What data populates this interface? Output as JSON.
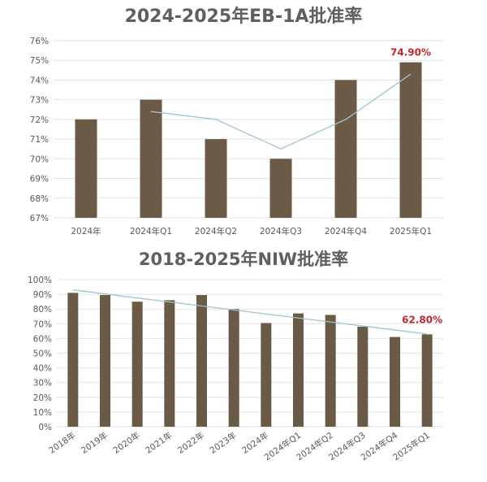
{
  "colors": {
    "bar": "#6b5b46",
    "trend": "#9ec3d3",
    "grid": "#e2e2e2",
    "highlight": "#c0282d"
  },
  "chart_data": [
    {
      "type": "bar",
      "title": "2024-2025年EB-1A批准率",
      "categories": [
        "2024年",
        "2024年Q1",
        "2024年Q2",
        "2024年Q3",
        "2024年Q4",
        "2025年Q1"
      ],
      "values": [
        72.0,
        73.0,
        71.0,
        70.0,
        74.0,
        74.9
      ],
      "trend_line": {
        "categories": [
          "2024年Q1",
          "2024年Q2",
          "2024年Q3",
          "2024年Q4",
          "2025年Q1"
        ],
        "values": [
          72.4,
          72.0,
          70.5,
          72.0,
          74.3
        ]
      },
      "ylim": [
        67,
        76
      ],
      "yticks": [
        "67%",
        "68%",
        "69%",
        "70%",
        "71%",
        "72%",
        "73%",
        "74%",
        "75%",
        "76%"
      ],
      "data_label": {
        "category": "2025年Q1",
        "text": "74.90%"
      },
      "grid": true
    },
    {
      "type": "bar",
      "title": "2018-2025年NIW批准率",
      "categories": [
        "2018年",
        "2019年",
        "2020年",
        "2021年",
        "2022年",
        "2023年",
        "2024年",
        "2024年Q1",
        "2024年Q2",
        "2024年Q3",
        "2024年Q4",
        "2025年Q1"
      ],
      "values": [
        91,
        89.5,
        85,
        86,
        89.5,
        80,
        70.5,
        77,
        76,
        68,
        61,
        62.8
      ],
      "trend_line": {
        "categories": [
          "2018年",
          "2025年Q1"
        ],
        "values": [
          93,
          63
        ]
      },
      "ylim": [
        0,
        100
      ],
      "yticks": [
        "0%",
        "10%",
        "20%",
        "30%",
        "40%",
        "50%",
        "60%",
        "70%",
        "80%",
        "90%",
        "100%"
      ],
      "data_label": {
        "category": "2025年Q1",
        "text": "62.80%"
      },
      "grid": true
    }
  ]
}
